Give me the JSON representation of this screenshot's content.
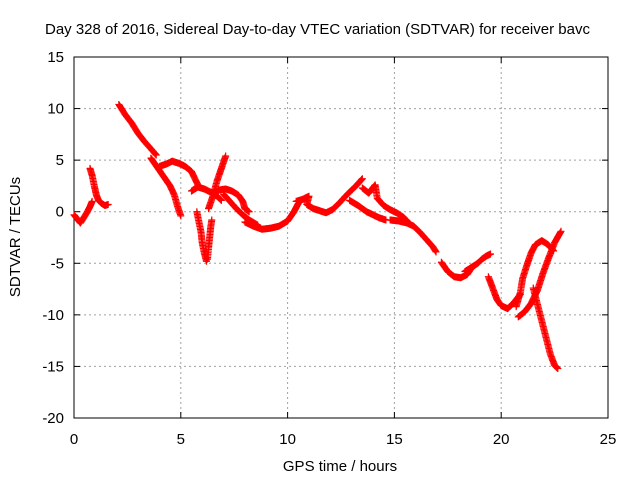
{
  "chart_data": {
    "type": "scatter",
    "title": "Day 328 of 2016, Sidereal Day-to-day VTEC variation (SDTVAR) for receiver bavc",
    "xlabel": "GPS time / hours",
    "ylabel": "SDTVAR / TECUs",
    "xlim": [
      0,
      25
    ],
    "ylim": [
      -20,
      15
    ],
    "xticks": [
      0,
      5,
      10,
      15,
      20,
      25
    ],
    "yticks": [
      -20,
      -15,
      -10,
      -5,
      0,
      5,
      10,
      15
    ],
    "grid": true,
    "marker": "+",
    "series": [
      {
        "name": "SDTVAR",
        "color": "#ff0000",
        "segments": [
          [
            [
              0.0,
              -0.3
            ],
            [
              0.15,
              -0.7
            ],
            [
              0.3,
              -1.1
            ],
            [
              0.45,
              -0.6
            ],
            [
              0.6,
              -0.1
            ],
            [
              0.75,
              0.5
            ],
            [
              0.85,
              1.0
            ]
          ],
          [
            [
              0.75,
              4.2
            ],
            [
              0.85,
              3.5
            ],
            [
              0.95,
              2.5
            ],
            [
              1.05,
              1.6
            ],
            [
              1.15,
              1.1
            ],
            [
              1.3,
              0.8
            ],
            [
              1.45,
              0.6
            ],
            [
              1.6,
              0.7
            ]
          ],
          [
            [
              2.1,
              10.4
            ],
            [
              2.4,
              9.4
            ],
            [
              2.7,
              8.6
            ],
            [
              3.0,
              7.6
            ],
            [
              3.3,
              6.8
            ],
            [
              3.6,
              6.1
            ],
            [
              3.85,
              5.5
            ]
          ],
          [
            [
              3.6,
              5.2
            ],
            [
              3.9,
              4.3
            ],
            [
              4.2,
              3.4
            ],
            [
              4.5,
              2.5
            ],
            [
              4.7,
              1.6
            ],
            [
              4.85,
              0.5
            ],
            [
              5.0,
              -0.4
            ]
          ],
          [
            [
              4.0,
              4.4
            ],
            [
              4.3,
              4.6
            ],
            [
              4.6,
              4.9
            ],
            [
              4.9,
              4.7
            ],
            [
              5.2,
              4.4
            ],
            [
              5.5,
              3.9
            ],
            [
              5.8,
              2.6
            ]
          ],
          [
            [
              5.5,
              2.0
            ],
            [
              5.8,
              2.4
            ],
            [
              6.1,
              2.2
            ],
            [
              6.4,
              1.9
            ],
            [
              6.7,
              1.5
            ],
            [
              6.9,
              1.1
            ]
          ],
          [
            [
              5.75,
              0.0
            ],
            [
              5.85,
              -1.0
            ],
            [
              5.95,
              -2.0
            ],
            [
              6.0,
              -3.0
            ],
            [
              6.1,
              -4.0
            ],
            [
              6.2,
              -4.8
            ]
          ],
          [
            [
              6.25,
              -4.6
            ],
            [
              6.3,
              -3.5
            ],
            [
              6.35,
              -2.5
            ],
            [
              6.4,
              -1.5
            ],
            [
              6.45,
              -0.8
            ]
          ],
          [
            [
              6.3,
              0.3
            ],
            [
              6.5,
              1.5
            ],
            [
              6.7,
              3.0
            ],
            [
              6.9,
              4.2
            ],
            [
              7.1,
              5.4
            ]
          ],
          [
            [
              6.5,
              1.8
            ],
            [
              6.8,
              2.1
            ],
            [
              7.1,
              2.2
            ],
            [
              7.4,
              2.0
            ],
            [
              7.7,
              1.6
            ],
            [
              7.9,
              1.0
            ],
            [
              8.0,
              0.3
            ],
            [
              8.2,
              0.0
            ]
          ],
          [
            [
              7.0,
              1.7
            ],
            [
              7.3,
              1.0
            ],
            [
              7.6,
              0.3
            ],
            [
              7.9,
              -0.3
            ],
            [
              8.2,
              -0.8
            ],
            [
              8.6,
              -1.3
            ]
          ],
          [
            [
              8.0,
              -1.0
            ],
            [
              8.4,
              -1.4
            ],
            [
              8.8,
              -1.7
            ],
            [
              9.2,
              -1.6
            ],
            [
              9.6,
              -1.4
            ],
            [
              10.0,
              -0.9
            ],
            [
              10.3,
              0.0
            ],
            [
              10.5,
              0.8
            ]
          ],
          [
            [
              10.4,
              1.0
            ],
            [
              10.7,
              1.2
            ],
            [
              11.0,
              1.5
            ],
            [
              10.9,
              0.7
            ],
            [
              11.2,
              0.3
            ],
            [
              11.5,
              0.1
            ],
            [
              11.8,
              -0.1
            ],
            [
              12.1,
              0.2
            ],
            [
              12.4,
              0.8
            ],
            [
              12.8,
              1.7
            ],
            [
              13.2,
              2.5
            ],
            [
              13.5,
              3.2
            ]
          ],
          [
            [
              12.9,
              1.1
            ],
            [
              13.3,
              0.6
            ],
            [
              13.7,
              0.0
            ],
            [
              14.0,
              -0.3
            ],
            [
              14.3,
              -0.6
            ],
            [
              14.6,
              -0.8
            ]
          ],
          [
            [
              13.5,
              2.3
            ],
            [
              13.8,
              1.8
            ],
            [
              14.1,
              2.6
            ],
            [
              14.2,
              1.3
            ],
            [
              14.5,
              0.6
            ],
            [
              14.8,
              0.2
            ],
            [
              15.1,
              -0.1
            ],
            [
              15.4,
              -0.5
            ],
            [
              15.6,
              -0.9
            ]
          ],
          [
            [
              14.8,
              -0.8
            ],
            [
              15.2,
              -0.9
            ],
            [
              15.6,
              -1.1
            ],
            [
              15.9,
              -1.4
            ],
            [
              16.2,
              -2.0
            ],
            [
              16.5,
              -2.7
            ],
            [
              16.8,
              -3.4
            ],
            [
              16.95,
              -3.9
            ]
          ],
          [
            [
              17.2,
              -4.9
            ],
            [
              17.5,
              -5.8
            ],
            [
              17.8,
              -6.3
            ],
            [
              18.1,
              -6.4
            ],
            [
              18.4,
              -6.1
            ],
            [
              18.6,
              -5.5
            ]
          ],
          [
            [
              18.3,
              -5.8
            ],
            [
              18.6,
              -5.4
            ],
            [
              18.9,
              -5.0
            ],
            [
              19.1,
              -4.6
            ],
            [
              19.3,
              -4.3
            ],
            [
              19.5,
              -4.1
            ]
          ],
          [
            [
              19.4,
              -6.3
            ],
            [
              19.6,
              -7.4
            ],
            [
              19.8,
              -8.5
            ],
            [
              20.0,
              -9.1
            ],
            [
              20.3,
              -9.4
            ],
            [
              20.6,
              -8.8
            ],
            [
              20.9,
              -8.0
            ]
          ],
          [
            [
              20.7,
              -9.2
            ],
            [
              20.9,
              -7.8
            ],
            [
              21.0,
              -6.5
            ],
            [
              21.2,
              -5.2
            ],
            [
              21.4,
              -4.0
            ],
            [
              21.6,
              -3.2
            ],
            [
              21.9,
              -2.8
            ],
            [
              22.2,
              -3.2
            ],
            [
              22.45,
              -3.8
            ]
          ],
          [
            [
              20.8,
              -10.2
            ],
            [
              21.1,
              -9.7
            ],
            [
              21.4,
              -8.9
            ],
            [
              21.7,
              -7.6
            ],
            [
              21.95,
              -6.0
            ],
            [
              22.2,
              -4.6
            ],
            [
              22.5,
              -3.0
            ],
            [
              22.8,
              -1.9
            ]
          ],
          [
            [
              21.5,
              -7.4
            ],
            [
              21.7,
              -9.0
            ],
            [
              21.9,
              -10.6
            ],
            [
              22.1,
              -12.2
            ],
            [
              22.3,
              -13.8
            ],
            [
              22.5,
              -14.9
            ],
            [
              22.65,
              -15.2
            ]
          ]
        ]
      }
    ]
  }
}
